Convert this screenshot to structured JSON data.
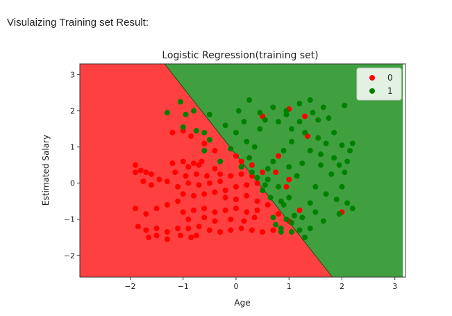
{
  "page": {
    "caption": "Visulaizing Training set Result:"
  },
  "chart_data": {
    "type": "scatter",
    "title": "Logistic Regression(training set)",
    "xlabel": "Age",
    "ylabel": "Estimated Salary",
    "xlim": [
      -2.95,
      3.2
    ],
    "ylim": [
      -2.6,
      3.3
    ],
    "xticks": [
      -2,
      -1,
      0,
      1,
      2,
      3
    ],
    "yticks": [
      -2,
      -1,
      0,
      1,
      2,
      3
    ],
    "xtick_labels": [
      "−2",
      "−1",
      "0",
      "1",
      "2",
      "3"
    ],
    "ytick_labels": [
      "−2",
      "−1",
      "0",
      "1",
      "2",
      "3"
    ],
    "grid": false,
    "legend_position": "top-right",
    "decision_boundary": {
      "points": [
        [
          -1.35,
          3.3
        ],
        [
          1.82,
          -2.6
        ]
      ]
    },
    "regions": [
      {
        "class": "0",
        "color": "#ff4040"
      },
      {
        "class": "1",
        "color": "#40a040"
      }
    ],
    "series": [
      {
        "name": "0",
        "color": "#ff0000",
        "points": [
          [
            -1.9,
            0.5
          ],
          [
            -1.8,
            0.35
          ],
          [
            -1.7,
            0.3
          ],
          [
            -1.6,
            0.25
          ],
          [
            -1.75,
            0.05
          ],
          [
            -1.6,
            -0.05
          ],
          [
            -1.45,
            0.1
          ],
          [
            -1.3,
            0.05
          ],
          [
            -1.9,
            -0.7
          ],
          [
            -1.7,
            -0.85
          ],
          [
            -1.5,
            -0.7
          ],
          [
            -1.3,
            -0.6
          ],
          [
            -1.1,
            -0.5
          ],
          [
            -1.85,
            -1.2
          ],
          [
            -1.7,
            -1.3
          ],
          [
            -1.5,
            -1.25
          ],
          [
            -1.3,
            -1.35
          ],
          [
            -1.1,
            -1.25
          ],
          [
            -1.65,
            -1.5
          ],
          [
            -1.5,
            -1.45
          ],
          [
            -1.3,
            -1.55
          ],
          [
            -1.05,
            -1.45
          ],
          [
            -0.85,
            -1.5
          ],
          [
            -0.75,
            -1.45
          ],
          [
            -0.9,
            -1.25
          ],
          [
            -0.7,
            -1.2
          ],
          [
            -0.5,
            -1.3
          ],
          [
            -0.3,
            -1.35
          ],
          [
            -0.1,
            -1.3
          ],
          [
            0.1,
            -1.25
          ],
          [
            0.3,
            -1.3
          ],
          [
            0.5,
            -1.35
          ],
          [
            0.7,
            -1.3
          ],
          [
            -1.2,
            0.55
          ],
          [
            -1.0,
            0.6
          ],
          [
            -0.9,
            0.45
          ],
          [
            -0.8,
            0.55
          ],
          [
            -0.7,
            0.5
          ],
          [
            -1.15,
            0.3
          ],
          [
            -0.95,
            0.2
          ],
          [
            -0.75,
            0.25
          ],
          [
            -0.55,
            0.2
          ],
          [
            -1.1,
            -0.1
          ],
          [
            -0.9,
            0.0
          ],
          [
            -0.7,
            -0.05
          ],
          [
            -0.5,
            0.0
          ],
          [
            -0.3,
            0.05
          ],
          [
            -1.0,
            -0.3
          ],
          [
            -0.8,
            -0.35
          ],
          [
            -0.6,
            -0.3
          ],
          [
            -0.4,
            -0.25
          ],
          [
            -0.2,
            -0.2
          ],
          [
            -1.0,
            -0.8
          ],
          [
            -0.8,
            -0.75
          ],
          [
            -0.6,
            -0.7
          ],
          [
            -0.4,
            -0.8
          ],
          [
            -0.2,
            -0.75
          ],
          [
            0.0,
            -0.7
          ],
          [
            0.2,
            -0.8
          ],
          [
            0.4,
            -0.75
          ],
          [
            -0.9,
            -1.0
          ],
          [
            -0.6,
            -0.95
          ],
          [
            -0.4,
            -1.05
          ],
          [
            -0.1,
            -1.0
          ],
          [
            0.15,
            -1.05
          ],
          [
            0.35,
            -0.95
          ],
          [
            -0.3,
            0.25
          ],
          [
            -0.1,
            0.2
          ],
          [
            0.1,
            0.25
          ],
          [
            0.3,
            0.2
          ],
          [
            0.5,
            0.3
          ],
          [
            -0.2,
            -0.4
          ],
          [
            0.0,
            -0.45
          ],
          [
            0.2,
            -0.35
          ],
          [
            0.4,
            -0.5
          ],
          [
            0.6,
            -0.6
          ],
          [
            0.8,
            -0.85
          ],
          [
            1.0,
            -1.05
          ],
          [
            0.0,
            -0.1
          ],
          [
            0.2,
            -0.05
          ],
          [
            0.4,
            0.0
          ],
          [
            0.1,
            0.6
          ],
          [
            0.3,
            0.5
          ],
          [
            -0.4,
            0.4
          ],
          [
            -1.2,
            1.4
          ],
          [
            -1.0,
            1.45
          ],
          [
            -0.85,
            1.3
          ],
          [
            -0.6,
            1.1
          ],
          [
            -0.4,
            0.9
          ],
          [
            -0.65,
            0.6
          ],
          [
            0.0,
            0.75
          ],
          [
            0.5,
            1.85
          ],
          [
            1.3,
            1.85
          ],
          [
            1.35,
            1.3
          ],
          [
            1.0,
            2.05
          ],
          [
            0.8,
            0.75
          ],
          [
            0.75,
            0.3
          ],
          [
            1.0,
            0.1
          ],
          [
            0.95,
            -0.1
          ],
          [
            1.2,
            -0.75
          ],
          [
            2.0,
            -0.8
          ],
          [
            -1.9,
            0.3
          ]
        ]
      },
      {
        "name": "1",
        "color": "#008000",
        "points": [
          [
            -1.3,
            1.95
          ],
          [
            -1.05,
            2.25
          ],
          [
            -0.95,
            1.9
          ],
          [
            -0.8,
            2.0
          ],
          [
            -1.0,
            1.55
          ],
          [
            -0.75,
            1.45
          ],
          [
            -0.6,
            1.4
          ],
          [
            -0.5,
            1.9
          ],
          [
            -0.5,
            1.2
          ],
          [
            -0.6,
            0.9
          ],
          [
            -0.3,
            0.6
          ],
          [
            -0.1,
            0.95
          ],
          [
            0.0,
            1.4
          ],
          [
            0.2,
            1.15
          ],
          [
            0.25,
            2.3
          ],
          [
            0.45,
            1.95
          ],
          [
            0.05,
            2.0
          ],
          [
            0.15,
            1.7
          ],
          [
            -0.2,
            1.6
          ],
          [
            0.35,
            1.0
          ],
          [
            0.55,
            1.75
          ],
          [
            0.8,
            1.7
          ],
          [
            0.95,
            1.9
          ],
          [
            1.05,
            1.5
          ],
          [
            1.2,
            1.7
          ],
          [
            1.45,
            1.95
          ],
          [
            1.55,
            1.75
          ],
          [
            1.75,
            1.8
          ],
          [
            1.7,
            1.1
          ],
          [
            1.4,
            0.9
          ],
          [
            1.6,
            0.8
          ],
          [
            1.25,
            0.55
          ],
          [
            1.0,
            0.45
          ],
          [
            1.95,
            0.5
          ],
          [
            2.1,
            0.6
          ],
          [
            2.15,
            0.9
          ],
          [
            2.0,
            1.05
          ],
          [
            2.2,
            1.1
          ],
          [
            1.8,
            0.25
          ],
          [
            2.0,
            -0.1
          ],
          [
            1.9,
            -0.45
          ],
          [
            2.1,
            -0.55
          ],
          [
            2.2,
            -0.7
          ],
          [
            1.95,
            -0.85
          ],
          [
            1.5,
            -0.8
          ],
          [
            1.65,
            -1.05
          ],
          [
            1.4,
            -1.25
          ],
          [
            1.05,
            -1.1
          ],
          [
            1.2,
            -1.3
          ],
          [
            1.3,
            -1.5
          ],
          [
            0.85,
            -1.35
          ],
          [
            0.75,
            -1.15
          ],
          [
            0.95,
            -1.0
          ],
          [
            1.1,
            -0.9
          ],
          [
            0.9,
            -0.6
          ],
          [
            0.8,
            -0.1
          ],
          [
            1.0,
            -0.4
          ],
          [
            0.6,
            0.1
          ],
          [
            0.4,
            0.15
          ],
          [
            0.55,
            -0.05
          ],
          [
            0.7,
            0.6
          ],
          [
            0.9,
            0.9
          ],
          [
            1.05,
            1.15
          ],
          [
            1.3,
            1.4
          ],
          [
            1.55,
            1.25
          ],
          [
            1.85,
            1.4
          ],
          [
            2.05,
            2.15
          ],
          [
            1.65,
            2.1
          ],
          [
            1.4,
            2.3
          ],
          [
            1.2,
            2.2
          ],
          [
            0.95,
            2.0
          ],
          [
            0.7,
            2.1
          ],
          [
            0.45,
            1.5
          ],
          [
            0.25,
            0.7
          ],
          [
            0.1,
            0.45
          ],
          [
            0.3,
            0.3
          ],
          [
            0.6,
            0.4
          ],
          [
            1.15,
            0.2
          ],
          [
            1.5,
            -0.1
          ],
          [
            1.7,
            -0.3
          ],
          [
            1.6,
            0.5
          ],
          [
            1.85,
            0.7
          ],
          [
            2.05,
            0.3
          ],
          [
            1.4,
            -0.55
          ],
          [
            1.25,
            -0.95
          ],
          [
            0.85,
            -1.25
          ],
          [
            1.05,
            -1.35
          ],
          [
            0.7,
            -0.95
          ],
          [
            0.85,
            -0.5
          ],
          [
            0.65,
            -0.4
          ],
          [
            0.5,
            -0.2
          ]
        ]
      }
    ]
  }
}
